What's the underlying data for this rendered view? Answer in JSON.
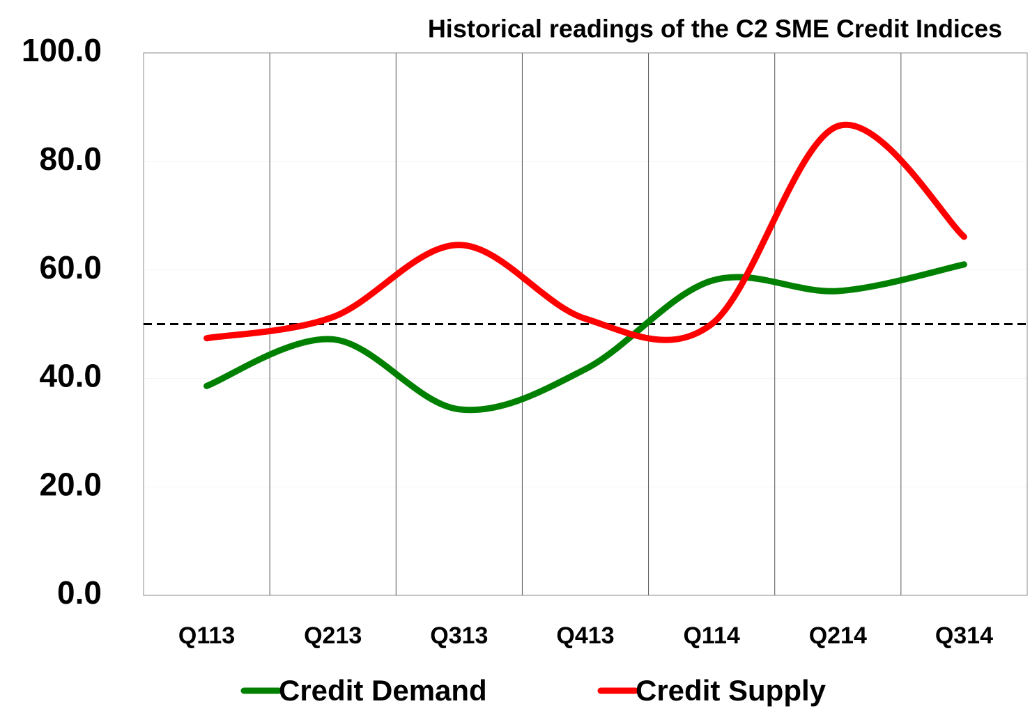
{
  "chart_data": {
    "type": "line",
    "title": "Historical readings of the C2 SME Credit Indices",
    "categories": [
      "Q113",
      "Q213",
      "Q313",
      "Q413",
      "Q114",
      "Q214",
      "Q314"
    ],
    "series": [
      {
        "name": "Credit Demand",
        "color": "#008000",
        "values": [
          38.6,
          47.2,
          34.3,
          41.7,
          58.0,
          56.1,
          61.0
        ]
      },
      {
        "name": "Credit Supply",
        "color": "#ff0000",
        "values": [
          47.4,
          51.3,
          64.6,
          51.0,
          50.0,
          86.5,
          66.1
        ]
      }
    ],
    "ylim": [
      0,
      100
    ],
    "yticks": [
      {
        "value": 0,
        "label": "0.0"
      },
      {
        "value": 20,
        "label": "20.0"
      },
      {
        "value": 40,
        "label": "40.0"
      },
      {
        "value": 60,
        "label": "60.0"
      },
      {
        "value": 80,
        "label": "80.0"
      },
      {
        "value": 100,
        "label": "100.0"
      }
    ],
    "reference_line": 50,
    "smooth": true,
    "legend": "bottom"
  }
}
